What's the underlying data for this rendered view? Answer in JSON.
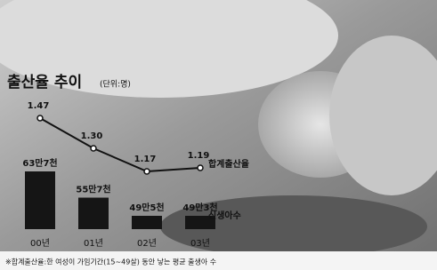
{
  "chart_data": {
    "type": "combo",
    "title": "출산율 추이",
    "unit": "(단위:명)",
    "categories": [
      "00년",
      "01년",
      "02년",
      "03년"
    ],
    "series": [
      {
        "name": "합계출산율",
        "type": "line",
        "color": "#111111",
        "values": [
          1.47,
          1.3,
          1.17,
          1.19
        ],
        "value_labels": [
          "1.47",
          "1.30",
          "1.17",
          "1.19"
        ]
      },
      {
        "name": "신생아수",
        "type": "bar",
        "color": "#151515",
        "values": [
          637000,
          557000,
          495000,
          493000
        ],
        "value_labels": [
          "63만7천",
          "55만7천",
          "49만5천",
          "49만3천"
        ]
      }
    ],
    "note": "※합계출산율:한 여성이 가임기간(15~49살) 동안 낳는 평균 출생아 수"
  }
}
